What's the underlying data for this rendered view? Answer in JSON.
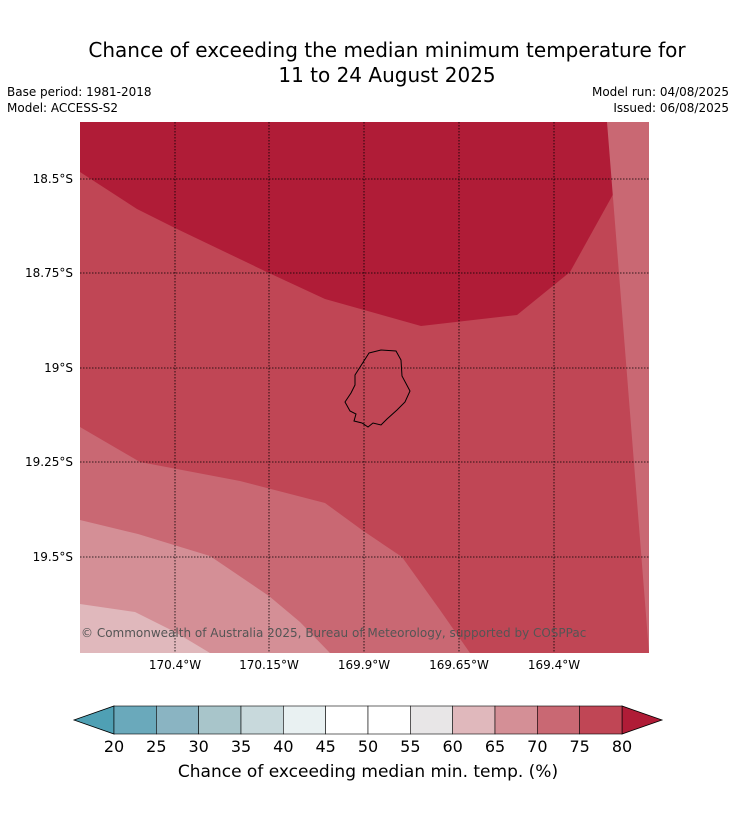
{
  "header": {
    "title_line1": "Chance of exceeding the median minimum temperature for",
    "title_line2": "11 to 24 August 2025",
    "base_period": "Base period: 1981-2018",
    "model": "Model: ACCESS-S2",
    "model_run": "Model run: 04/08/2025",
    "issued": "Issued: 06/08/2025"
  },
  "map": {
    "region": "Niue",
    "lat_labels": [
      "18.5°S",
      "18.75°S",
      "19°S",
      "19.25°S",
      "19.5°S"
    ],
    "lon_labels": [
      "170.4°W",
      "170.15°W",
      "169.9°W",
      "169.65°W",
      "169.4°W"
    ],
    "gridlines": "dotted",
    "copyright": "© Commonwealth of Australia 2025, Bureau of Meteorology, supported by COSPPac"
  },
  "colorbar": {
    "ticks": [
      "20",
      "25",
      "30",
      "35",
      "40",
      "45",
      "50",
      "55",
      "60",
      "65",
      "70",
      "75",
      "80"
    ],
    "colors": [
      "#6aa9bb",
      "#8ab4c2",
      "#a8c5ca",
      "#c8d9dc",
      "#e9f1f2",
      "#ffffff",
      "#ffffff",
      "#e8e6e7",
      "#e0b8bc",
      "#d48f96",
      "#c96873",
      "#c04655"
    ],
    "under_color": "#4fa0b4",
    "over_color": "#b01c37",
    "label": "Chance of exceeding median min. temp. (%)"
  }
}
